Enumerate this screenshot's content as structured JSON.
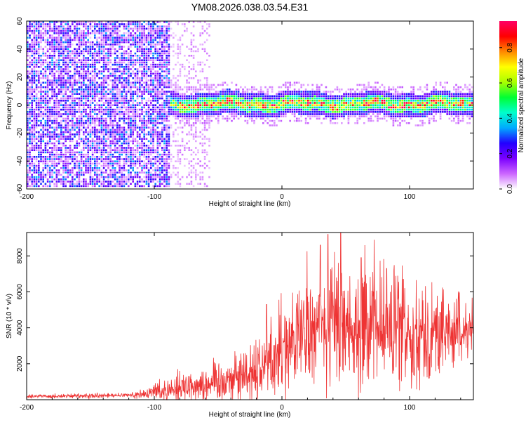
{
  "title": "YM08.2026.038.03.54.E31",
  "chart_data": [
    {
      "type": "heatmap",
      "xlabel": "Height of straight line (km)",
      "ylabel": "Frequency (Hz)",
      "xlim": [
        -200,
        150
      ],
      "ylim": [
        -60,
        60
      ],
      "xticks": [
        -200,
        -100,
        0,
        100
      ],
      "yticks": [
        -60,
        -40,
        -20,
        0,
        20,
        40,
        60
      ],
      "colorbar": {
        "label": "Normalized spectral amplitude",
        "range": [
          0,
          0.95
        ],
        "ticks": [
          0.0,
          0.2,
          0.4,
          0.6,
          0.8
        ],
        "colors": [
          "#ffffff",
          "#cc66ff",
          "#7b00ff",
          "#2200ff",
          "#00aaff",
          "#00ffcc",
          "#00ff33",
          "#aaff00",
          "#ffff00",
          "#ff8800",
          "#ff0000",
          "#ff0066"
        ]
      },
      "features": {
        "noise_region_x": [
          -200,
          -87
        ],
        "noise_amplitude": [
          0.05,
          0.35
        ],
        "faint_tail_x": [
          -87,
          -55
        ],
        "signal_band_x": [
          -87,
          150
        ],
        "signal_center_hz": 0,
        "signal_halfwidth_hz": 6,
        "signal_peak_amplitude": 0.95
      }
    },
    {
      "type": "area",
      "xlabel": "Height of straight line (km)",
      "ylabel": "SNR (10 * v/v)",
      "xlim": [
        -200,
        150
      ],
      "ylim": [
        0,
        9300
      ],
      "xticks": [
        -200,
        -100,
        0,
        100
      ],
      "yticks": [
        2000,
        4000,
        6000,
        8000
      ],
      "color": "#ee3333",
      "envelope": {
        "x": [
          -200,
          -150,
          -120,
          -105,
          -100,
          -90,
          -80,
          -70,
          -60,
          -50,
          -40,
          -30,
          -20,
          -10,
          0,
          10,
          20,
          30,
          40,
          50,
          60,
          70,
          80,
          90,
          100,
          110,
          120,
          130,
          140,
          150
        ],
        "mean": [
          200,
          200,
          250,
          300,
          500,
          550,
          700,
          800,
          900,
          1000,
          1200,
          1400,
          1700,
          2200,
          2900,
          3300,
          3700,
          4100,
          4300,
          4300,
          4200,
          4100,
          4000,
          3900,
          3800,
          3700,
          3700,
          3800,
          3800,
          3900
        ],
        "spread": [
          100,
          120,
          130,
          250,
          500,
          600,
          800,
          900,
          1000,
          1100,
          1200,
          1400,
          1600,
          1800,
          2200,
          2400,
          2700,
          3100,
          3500,
          3600,
          3300,
          3200,
          3200,
          3000,
          2700,
          2500,
          2300,
          2000,
          1800,
          1200
        ]
      },
      "peaks": [
        {
          "x": -12,
          "y": 5300
        },
        {
          "x": 30,
          "y": 8600
        },
        {
          "x": 36,
          "y": 9200
        },
        {
          "x": 46,
          "y": 9300
        },
        {
          "x": 62,
          "y": 7900
        },
        {
          "x": 82,
          "y": 7300
        },
        {
          "x": 95,
          "y": 6700
        }
      ]
    }
  ]
}
